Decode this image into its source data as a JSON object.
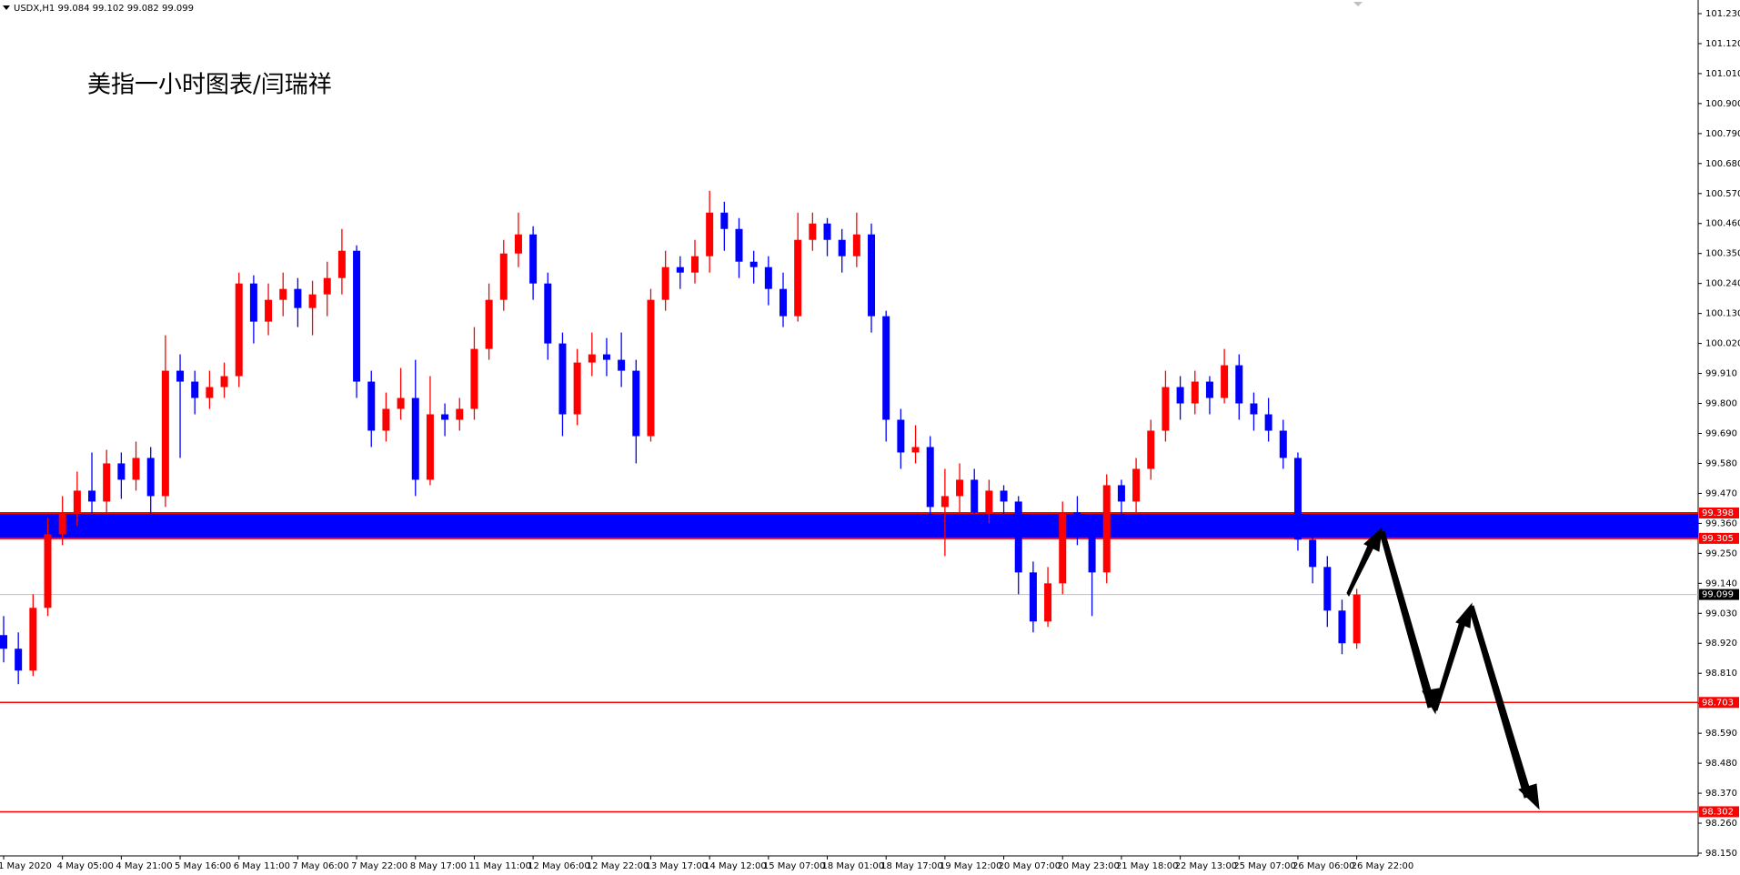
{
  "chart_data": {
    "type": "candlestick",
    "header": "USDX,H1  99.084 99.102 99.082 99.099",
    "title": "美指一小时图表/闫瑞祥",
    "categories": [
      "1 May 2020",
      null,
      null,
      null,
      "4 May 05:00",
      null,
      null,
      null,
      "4 May 21:00",
      null,
      null,
      null,
      "5 May 16:00",
      null,
      null,
      null,
      "6 May 11:00",
      null,
      null,
      null,
      "7 May 06:00",
      null,
      null,
      null,
      "7 May 22:00",
      null,
      null,
      null,
      "8 May 17:00",
      null,
      null,
      null,
      "11 May 11:00",
      null,
      null,
      null,
      "12 May 06:00",
      null,
      null,
      null,
      "12 May 22:00",
      null,
      null,
      null,
      "13 May 17:00",
      null,
      null,
      null,
      "14 May 12:00",
      null,
      null,
      null,
      "15 May 07:00",
      null,
      null,
      null,
      "18 May 01:00",
      null,
      null,
      null,
      "18 May 17:00",
      null,
      null,
      null,
      "19 May 12:00",
      null,
      null,
      null,
      "20 May 07:00",
      null,
      null,
      null,
      "20 May 23:00",
      null,
      null,
      null,
      "21 May 18:00",
      null,
      null,
      null,
      "22 May 13:00",
      null,
      null,
      null,
      "25 May 07:00",
      null,
      null,
      null,
      "26 May 06:00",
      null,
      null,
      null,
      "26 May 22:00"
    ],
    "open": [
      98.95,
      98.9,
      98.82,
      99.05,
      99.32,
      99.4,
      99.48,
      99.44,
      99.58,
      99.52,
      99.6,
      99.46,
      99.92,
      99.88,
      99.82,
      99.86,
      99.9,
      100.24,
      100.1,
      100.18,
      100.22,
      100.15,
      100.2,
      100.26,
      100.36,
      99.88,
      99.7,
      99.78,
      99.82,
      99.52,
      99.76,
      99.74,
      99.78,
      100.0,
      100.18,
      100.35,
      100.42,
      100.24,
      100.02,
      99.76,
      99.95,
      99.98,
      99.96,
      99.92,
      99.68,
      100.18,
      100.3,
      100.28,
      100.34,
      100.5,
      100.44,
      100.32,
      100.3,
      100.22,
      100.12,
      100.4,
      100.46,
      100.4,
      100.34,
      100.42,
      100.12,
      99.74,
      99.62,
      99.64,
      99.42,
      99.46,
      99.52,
      99.4,
      99.48,
      99.44,
      99.18,
      99.0,
      99.14,
      99.4,
      99.34,
      99.18,
      99.5,
      99.44,
      99.56,
      99.7,
      99.86,
      99.8,
      99.88,
      99.82,
      99.94,
      99.8,
      99.76,
      99.7,
      99.6,
      99.3,
      99.2,
      99.04,
      98.92
    ],
    "high": [
      99.02,
      98.96,
      99.1,
      99.38,
      99.46,
      99.55,
      99.62,
      99.63,
      99.62,
      99.66,
      99.64,
      100.05,
      99.98,
      99.92,
      99.92,
      99.95,
      100.28,
      100.27,
      100.24,
      100.28,
      100.26,
      100.25,
      100.32,
      100.44,
      100.38,
      99.92,
      99.84,
      99.93,
      99.96,
      99.9,
      99.8,
      99.82,
      100.08,
      100.24,
      100.4,
      100.5,
      100.45,
      100.28,
      100.06,
      100.0,
      100.06,
      100.04,
      100.06,
      99.96,
      100.22,
      100.36,
      100.34,
      100.4,
      100.58,
      100.54,
      100.48,
      100.36,
      100.34,
      100.28,
      100.5,
      100.5,
      100.48,
      100.44,
      100.5,
      100.46,
      100.14,
      99.78,
      99.72,
      99.68,
      99.56,
      99.58,
      99.56,
      99.52,
      99.5,
      99.46,
      99.22,
      99.2,
      99.44,
      99.46,
      99.38,
      99.54,
      99.52,
      99.6,
      99.74,
      99.92,
      99.9,
      99.92,
      99.9,
      100.0,
      99.98,
      99.84,
      99.82,
      99.74,
      99.62,
      99.34,
      99.24,
      99.08,
      99.12
    ],
    "low": [
      98.85,
      98.77,
      98.8,
      99.02,
      99.28,
      99.35,
      99.38,
      99.4,
      99.45,
      99.48,
      99.38,
      99.42,
      99.6,
      99.76,
      99.78,
      99.82,
      99.86,
      100.02,
      100.05,
      100.12,
      100.08,
      100.05,
      100.12,
      100.2,
      99.82,
      99.64,
      99.66,
      99.74,
      99.46,
      99.5,
      99.68,
      99.7,
      99.74,
      99.96,
      100.14,
      100.3,
      100.18,
      99.96,
      99.68,
      99.72,
      99.9,
      99.9,
      99.86,
      99.58,
      99.66,
      100.14,
      100.22,
      100.24,
      100.28,
      100.36,
      100.26,
      100.24,
      100.16,
      100.08,
      100.1,
      100.36,
      100.34,
      100.28,
      100.3,
      100.06,
      99.66,
      99.56,
      99.58,
      99.36,
      99.24,
      99.4,
      99.34,
      99.36,
      99.38,
      99.1,
      98.96,
      98.98,
      99.1,
      99.28,
      99.02,
      99.14,
      99.36,
      99.4,
      99.52,
      99.66,
      99.74,
      99.76,
      99.76,
      99.8,
      99.74,
      99.7,
      99.66,
      99.56,
      99.26,
      99.14,
      98.98,
      98.88,
      98.9
    ],
    "close": [
      98.9,
      98.82,
      99.05,
      99.32,
      99.4,
      99.48,
      99.44,
      99.58,
      99.52,
      99.6,
      99.46,
      99.92,
      99.88,
      99.82,
      99.86,
      99.9,
      100.24,
      100.1,
      100.18,
      100.22,
      100.15,
      100.2,
      100.26,
      100.36,
      99.88,
      99.7,
      99.78,
      99.82,
      99.52,
      99.76,
      99.74,
      99.78,
      100.0,
      100.18,
      100.35,
      100.42,
      100.24,
      100.02,
      99.76,
      99.95,
      99.98,
      99.96,
      99.92,
      99.68,
      100.18,
      100.3,
      100.28,
      100.34,
      100.5,
      100.44,
      100.32,
      100.3,
      100.22,
      100.12,
      100.4,
      100.46,
      100.4,
      100.34,
      100.42,
      100.12,
      99.74,
      99.62,
      99.64,
      99.42,
      99.46,
      99.52,
      99.4,
      99.48,
      99.44,
      99.18,
      99.0,
      99.14,
      99.4,
      99.34,
      99.18,
      99.5,
      99.44,
      99.56,
      99.7,
      99.86,
      99.8,
      99.88,
      99.82,
      99.94,
      99.8,
      99.76,
      99.7,
      99.6,
      99.3,
      99.2,
      99.04,
      98.92,
      99.099
    ],
    "up_color": "#ff0000",
    "down_color": "#0000ff",
    "ylim": [
      98.14,
      101.28
    ],
    "yticks": [
      {
        "value": 98.15,
        "label": "98.150"
      },
      {
        "value": 98.26,
        "label": "98.260"
      },
      {
        "value": 98.37,
        "label": "98.370"
      },
      {
        "value": 98.48,
        "label": "98.480"
      },
      {
        "value": 98.59,
        "label": "98.590"
      },
      {
        "value": 98.7,
        "label": "98.700"
      },
      {
        "value": 98.81,
        "label": "98.810"
      },
      {
        "value": 98.92,
        "label": "98.920"
      },
      {
        "value": 99.03,
        "label": "99.030"
      },
      {
        "value": 99.14,
        "label": "99.140"
      },
      {
        "value": 99.25,
        "label": "99.250"
      },
      {
        "value": 99.36,
        "label": "99.360"
      },
      {
        "value": 99.47,
        "label": "99.470"
      },
      {
        "value": 99.58,
        "label": "99.580"
      },
      {
        "value": 99.69,
        "label": "99.690"
      },
      {
        "value": 99.8,
        "label": "99.800"
      },
      {
        "value": 99.91,
        "label": "99.910"
      },
      {
        "value": 100.02,
        "label": "100.020"
      },
      {
        "value": 100.13,
        "label": "100.130"
      },
      {
        "value": 100.24,
        "label": "100.240"
      },
      {
        "value": 100.35,
        "label": "100.350"
      },
      {
        "value": 100.46,
        "label": "100.460"
      },
      {
        "value": 100.57,
        "label": "100.570"
      },
      {
        "value": 100.68,
        "label": "100.680"
      },
      {
        "value": 100.79,
        "label": "100.790"
      },
      {
        "value": 100.9,
        "label": "100.900"
      },
      {
        "value": 101.01,
        "label": "101.010"
      },
      {
        "value": 101.12,
        "label": "101.120"
      },
      {
        "value": 101.23,
        "label": "101.230"
      }
    ],
    "zone": {
      "low": 99.305,
      "high": 99.398,
      "color": "#0000ff",
      "edge_color": "#ff0000"
    },
    "lines": [
      {
        "value": 98.703,
        "color": "#ff0000"
      },
      {
        "value": 98.302,
        "color": "#ff0000"
      }
    ],
    "current_price": 99.099,
    "current_color": "#c0c0c0"
  }
}
